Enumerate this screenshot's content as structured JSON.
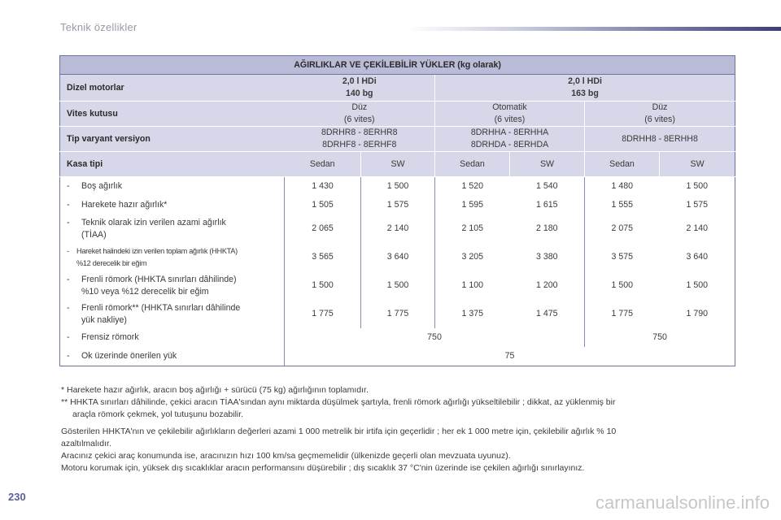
{
  "header": {
    "title": "Teknik özellikler"
  },
  "table": {
    "title": "AĞIRLIKLAR VE ÇEKİLEBİLİR YÜKLER (kg olarak)",
    "diesel_label": "Dizel motorlar",
    "engine_a": [
      "2,0 l HDi",
      "140 bg"
    ],
    "engine_b": [
      "2,0 l HDi",
      "163 bg"
    ],
    "gearbox_label": "Vites kutusu",
    "gearbox": [
      [
        "Düz",
        "(6 vites)"
      ],
      [
        "Otomatik",
        "(6 vites)"
      ],
      [
        "Düz",
        "(6 vites)"
      ]
    ],
    "variant_label": "Tip varyant versiyon",
    "variants": [
      [
        "8DRHR8 - 8ERHR8",
        "8DRHF8 - 8ERHF8"
      ],
      [
        "8DRHHA - 8ERHHA",
        "8DRHDA - 8ERHDA"
      ],
      [
        "8DRHH8 - 8ERHH8"
      ]
    ],
    "body_label": "Kasa tipi",
    "body_types": [
      "Sedan",
      "SW",
      "Sedan",
      "SW",
      "Sedan",
      "SW"
    ],
    "rows": [
      {
        "label": "Boş ağırlık",
        "values": [
          "1 430",
          "1 500",
          "1 520",
          "1 540",
          "1 480",
          "1 500"
        ]
      },
      {
        "label": "Harekete hazır ağırlık*",
        "values": [
          "1 505",
          "1 575",
          "1 595",
          "1 615",
          "1 555",
          "1 575"
        ]
      },
      {
        "label": "Teknik olarak izin verilen azami ağırlık",
        "label2": "(TİAA)",
        "values": [
          "2 065",
          "2 140",
          "2 105",
          "2 180",
          "2 075",
          "2 140"
        ]
      },
      {
        "label": "Hareket halindeki izin verilen toplam ağırlık (HHKTA)",
        "label2": "%12 derecelik bir eğim",
        "values": [
          "3 565",
          "3 640",
          "3 205",
          "3 380",
          "3 575",
          "3 640"
        ]
      },
      {
        "label": "Frenli römork (HHKTA sınırları dâhilinde)",
        "label2": "%10 veya %12 derecelik bir eğim",
        "values": [
          "1 500",
          "1 500",
          "1 100",
          "1 200",
          "1 500",
          "1 500"
        ]
      },
      {
        "label": "Frenli römork** (HHKTA sınırları dâhilinde",
        "label2": "yük nakliye)",
        "values": [
          "1 775",
          "1 775",
          "1 375",
          "1 475",
          "1 775",
          "1 790"
        ]
      }
    ],
    "unbraked": {
      "label": "Frensiz römork",
      "value_a": "750",
      "value_b": "750"
    },
    "towball": {
      "label": "Ok üzerinde önerilen yük",
      "value": "75"
    }
  },
  "notes": {
    "n1": "* Harekete hazır ağırlık, aracın boş ağırlığı + sürücü (75 kg) ağırlığının toplamıdır.",
    "n2": "** HHKTA sınırları dâhilinde, çekici aracın TİAA'sından aynı miktarda düşülmek şartıyla, frenli römork ağırlığı yükseltilebilir ; dikkat, az yüklenmiş bir",
    "n2b": "araçla römork çekmek, yol tutuşunu bozabilir.",
    "p1": "Gösterilen HHKTA'nın ve çekilebilir ağırlıkların değerleri azami 1 000 metrelik bir irtifa için geçerlidir ; her ek 1 000 metre için, çekilebilir ağırlık % 10",
    "p1b": "azaltılmalıdır.",
    "p2": "Aracınız çekici araç konumunda ise, aracınızın hızı 100 km/sa geçmemelidir (ülkenizde geçerli olan mevzuata uyunuz).",
    "p3": "Motoru korumak için, yüksek dış sıcaklıklar aracın performansını düşürebilir ; dış sıcaklık 37 °C'nin üzerinde ise çekilen ağırlığı sınırlayınız."
  },
  "page_number": "230",
  "watermark": "carmanualsonline.info",
  "colors": {
    "header_band": "#b9bbd7",
    "spec_band": "#d6d7e8",
    "frame": "#6f72a0",
    "page_number": "#5a5f96"
  }
}
